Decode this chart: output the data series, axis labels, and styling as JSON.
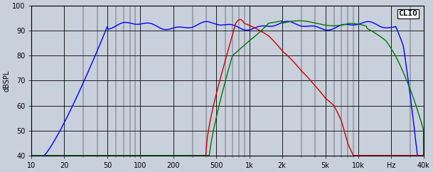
{
  "title": "CLIO",
  "ylabel": "dBSPL",
  "xlabel": "Hz",
  "xmin": 10,
  "xmax": 40000,
  "ymin": 40,
  "ymax": 100,
  "yticks": [
    40,
    50,
    60,
    70,
    80,
    90,
    100
  ],
  "xticks": [
    10,
    20,
    50,
    100,
    200,
    500,
    1000,
    2000,
    5000,
    10000,
    20000,
    40000
  ],
  "xticklabels": [
    "10",
    "20",
    "50",
    "100",
    "200",
    "500",
    "1k",
    "2k",
    "5k",
    "10k",
    "Hz",
    "40k"
  ],
  "bg_color": "#c8d0dc",
  "grid_color": "#000000",
  "line_color_blue": "#0000ff",
  "line_color_red": "#cc0000",
  "line_color_green": "#007700",
  "linewidth": 1.0
}
